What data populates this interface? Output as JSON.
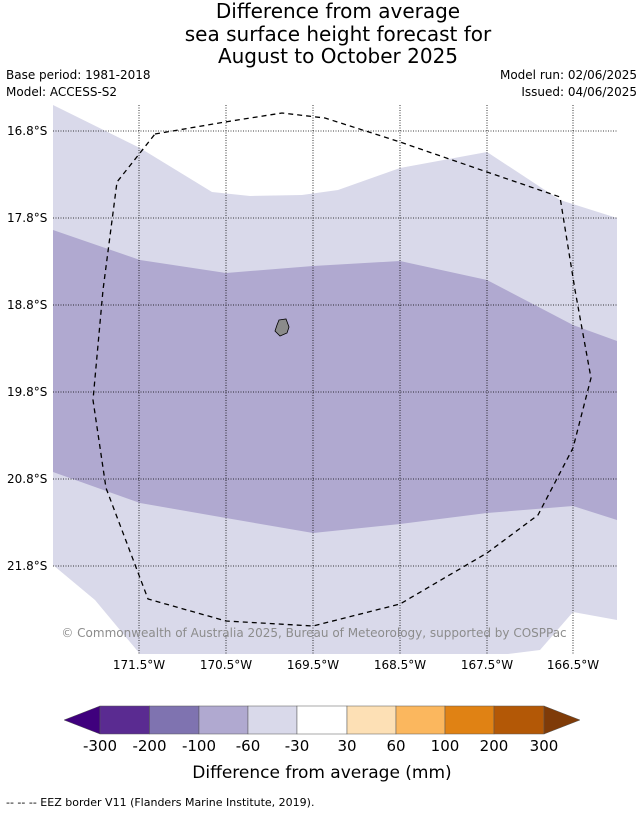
{
  "title": {
    "line1": "Difference from average",
    "line2": "sea surface height forecast for",
    "line3": "August to October 2025"
  },
  "meta": {
    "base_period": "Base period: 1981-2018",
    "model": "Model: ACCESS-S2",
    "model_run": "Model run: 02/06/2025",
    "issued": "Issued: 04/06/2025"
  },
  "map": {
    "lat_labels": [
      "16.8°S",
      "17.8°S",
      "18.8°S",
      "19.8°S",
      "20.8°S",
      "21.8°S"
    ],
    "lon_labels": [
      "171.5°W",
      "170.5°W",
      "169.5°W",
      "168.5°W",
      "167.5°W",
      "166.5°W"
    ],
    "credit": "© Commonwealth of Australia 2025, Bureau of Meteorology, supported by COSPPac",
    "colors": {
      "band_light": "#d9d9ea",
      "band_mid": "#b0a9d0",
      "island": "#8b8b8b"
    }
  },
  "colorbar": {
    "ticks": [
      "-300",
      "-200",
      "-100",
      "-60",
      "-30",
      "30",
      "60",
      "100",
      "200",
      "300"
    ],
    "colors": [
      "#3f007d",
      "#5a2b91",
      "#7f73b0",
      "#b0a9d0",
      "#d9d9ea",
      "#ffffff",
      "#fde0b5",
      "#fbb75e",
      "#e08214",
      "#b35806",
      "#7f3b08"
    ],
    "label": "Difference from average (mm)"
  },
  "footnote": "-- -- -- EEZ border V11 (Flanders Marine Institute, 2019)."
}
